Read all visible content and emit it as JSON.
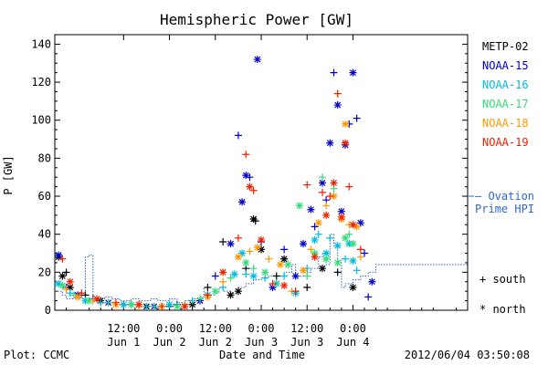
{
  "chart_data": {
    "type": "scatter",
    "title": "Hemispheric Power [GW]",
    "ylabel": "P [GW]",
    "xlabel": "Date and Time",
    "ylim": [
      0,
      145
    ],
    "xlim_hours": [
      -30,
      78
    ],
    "yticks": [
      0,
      20,
      40,
      60,
      80,
      100,
      120,
      140
    ],
    "xticks": [
      {
        "hours": -12,
        "time": "12:00",
        "date": "Jun 1"
      },
      {
        "hours": 0,
        "time": "0:00",
        "date": "Jun 2"
      },
      {
        "hours": 12,
        "time": "12:00",
        "date": "Jun 2"
      },
      {
        "hours": 24,
        "time": "0:00",
        "date": "Jun 3"
      },
      {
        "hours": 36,
        "time": "12:00",
        "date": "Jun 3"
      },
      {
        "hours": 48,
        "time": "0:00",
        "date": "Jun 4"
      }
    ],
    "legend_placement": "right",
    "symbols": {
      "south": "+",
      "north": "*"
    },
    "series": [
      {
        "name": "METP-02",
        "color": "#000000",
        "points": [
          [
            -29,
            28,
            "*"
          ],
          [
            -28,
            18,
            "*"
          ],
          [
            -27,
            20,
            "+"
          ],
          [
            -26,
            12,
            "*"
          ],
          [
            -22,
            8,
            "+"
          ],
          [
            -18,
            5,
            "*"
          ],
          [
            -12,
            3,
            "+"
          ],
          [
            -6,
            2,
            "*"
          ],
          [
            0,
            2,
            "+"
          ],
          [
            6,
            3,
            "*"
          ],
          [
            10,
            12,
            "+"
          ],
          [
            14,
            36,
            "+"
          ],
          [
            16,
            8,
            "*"
          ],
          [
            18,
            10,
            "*"
          ],
          [
            20,
            22,
            "+"
          ],
          [
            22,
            48,
            "*"
          ],
          [
            22.5,
            47,
            "+"
          ],
          [
            24,
            32,
            "*"
          ],
          [
            28,
            18,
            "+"
          ],
          [
            30,
            27,
            "*"
          ],
          [
            36,
            12,
            "+"
          ],
          [
            40,
            22,
            "*"
          ],
          [
            44,
            20,
            "+"
          ],
          [
            48,
            12,
            "*"
          ]
        ]
      },
      {
        "name": "NOAA-15",
        "color": "#0000cc",
        "points": [
          [
            -29,
            29,
            "*"
          ],
          [
            -27,
            12,
            "+"
          ],
          [
            -24,
            8,
            "*"
          ],
          [
            -20,
            6,
            "+"
          ],
          [
            -16,
            4,
            "*"
          ],
          [
            -10,
            3,
            "+"
          ],
          [
            -4,
            2,
            "*"
          ],
          [
            2,
            3,
            "+"
          ],
          [
            8,
            5,
            "*"
          ],
          [
            12,
            18,
            "+"
          ],
          [
            16,
            35,
            "*"
          ],
          [
            18,
            92,
            "+"
          ],
          [
            19,
            57,
            "*"
          ],
          [
            20,
            71,
            "*"
          ],
          [
            21,
            70,
            "+"
          ],
          [
            23,
            132,
            "*"
          ],
          [
            24,
            36,
            "+"
          ],
          [
            27,
            12,
            "*"
          ],
          [
            30,
            32,
            "+"
          ],
          [
            33,
            18,
            "*"
          ],
          [
            35,
            35,
            "*"
          ],
          [
            37,
            53,
            "*"
          ],
          [
            38,
            44,
            "+"
          ],
          [
            40,
            67,
            "*"
          ],
          [
            41,
            58,
            "+"
          ],
          [
            42,
            88,
            "*"
          ],
          [
            43,
            125,
            "+"
          ],
          [
            44,
            108,
            "*"
          ],
          [
            45,
            52,
            "*"
          ],
          [
            46,
            87,
            "*"
          ],
          [
            47,
            98,
            "+"
          ],
          [
            48,
            125,
            "*"
          ],
          [
            49,
            101,
            "+"
          ],
          [
            50,
            46,
            "*"
          ],
          [
            51,
            30,
            "+"
          ],
          [
            52,
            7,
            "+"
          ],
          [
            53,
            15,
            "*"
          ]
        ]
      },
      {
        "name": "NOAA-16",
        "color": "#00bbdd",
        "points": [
          [
            -29,
            14,
            "*"
          ],
          [
            -26,
            9,
            "+"
          ],
          [
            -22,
            5,
            "*"
          ],
          [
            -18,
            4,
            "+"
          ],
          [
            -12,
            3,
            "*"
          ],
          [
            -6,
            2,
            "+"
          ],
          [
            0,
            3,
            "*"
          ],
          [
            6,
            5,
            "+"
          ],
          [
            10,
            8,
            "*"
          ],
          [
            14,
            12,
            "+"
          ],
          [
            17,
            19,
            "*"
          ],
          [
            19,
            30,
            "*"
          ],
          [
            20,
            19,
            "+"
          ],
          [
            22,
            18,
            "*"
          ],
          [
            25,
            17,
            "+"
          ],
          [
            28,
            14,
            "*"
          ],
          [
            30,
            18,
            "+"
          ],
          [
            33,
            9,
            "*"
          ],
          [
            36,
            22,
            "+"
          ],
          [
            38,
            37,
            "*"
          ],
          [
            39,
            40,
            "+"
          ],
          [
            41,
            30,
            "*"
          ],
          [
            42,
            38,
            "+"
          ],
          [
            44,
            34,
            "*"
          ],
          [
            46,
            27,
            "+"
          ],
          [
            47,
            35,
            "*"
          ],
          [
            48,
            26,
            "*"
          ],
          [
            49,
            21,
            "+"
          ]
        ]
      },
      {
        "name": "NOAA-17",
        "color": "#33dd77",
        "points": [
          [
            -28,
            13,
            "*"
          ],
          [
            -25,
            8,
            "+"
          ],
          [
            -21,
            5,
            "*"
          ],
          [
            -16,
            4,
            "+"
          ],
          [
            -10,
            3,
            "*"
          ],
          [
            -4,
            2,
            "+"
          ],
          [
            2,
            2,
            "*"
          ],
          [
            8,
            6,
            "+"
          ],
          [
            12,
            10,
            "*"
          ],
          [
            16,
            17,
            "+"
          ],
          [
            20,
            25,
            "*"
          ],
          [
            22,
            22,
            "+"
          ],
          [
            25,
            20,
            "*"
          ],
          [
            28,
            14,
            "+"
          ],
          [
            31,
            24,
            "*"
          ],
          [
            34,
            55,
            "*"
          ],
          [
            36,
            18,
            "+"
          ],
          [
            38,
            30,
            "*"
          ],
          [
            40,
            70,
            "+"
          ],
          [
            41,
            27,
            "*"
          ],
          [
            43,
            64,
            "+"
          ],
          [
            44,
            25,
            "*"
          ],
          [
            46,
            38,
            "*"
          ],
          [
            47,
            40,
            "+"
          ],
          [
            48,
            35,
            "*"
          ]
        ]
      },
      {
        "name": "NOAA-18",
        "color": "#ff9900",
        "points": [
          [
            -27,
            11,
            "+"
          ],
          [
            -24,
            7,
            "*"
          ],
          [
            -20,
            5,
            "+"
          ],
          [
            -14,
            3,
            "*"
          ],
          [
            -8,
            2,
            "+"
          ],
          [
            -2,
            2,
            "*"
          ],
          [
            4,
            3,
            "+"
          ],
          [
            10,
            7,
            "*"
          ],
          [
            14,
            15,
            "+"
          ],
          [
            18,
            28,
            "*"
          ],
          [
            21,
            31,
            "+"
          ],
          [
            23,
            33,
            "*"
          ],
          [
            26,
            27,
            "+"
          ],
          [
            29,
            24,
            "*"
          ],
          [
            32,
            10,
            "+"
          ],
          [
            35,
            21,
            "*"
          ],
          [
            37,
            32,
            "+"
          ],
          [
            39,
            46,
            "*"
          ],
          [
            41,
            55,
            "+"
          ],
          [
            43,
            60,
            "*"
          ],
          [
            44,
            114,
            "+"
          ],
          [
            45,
            48,
            "*"
          ],
          [
            46,
            98,
            "*"
          ],
          [
            47,
            45,
            "+"
          ],
          [
            49,
            44,
            "*"
          ],
          [
            50,
            28,
            "+"
          ]
        ]
      },
      {
        "name": "NOAA-19",
        "color": "#ee2200",
        "points": [
          [
            -28,
            27,
            "+"
          ],
          [
            -26,
            15,
            "*"
          ],
          [
            -23,
            9,
            "+"
          ],
          [
            -19,
            6,
            "*"
          ],
          [
            -14,
            4,
            "+"
          ],
          [
            -8,
            3,
            "*"
          ],
          [
            -2,
            2,
            "+"
          ],
          [
            4,
            2,
            "*"
          ],
          [
            10,
            8,
            "+"
          ],
          [
            14,
            20,
            "*"
          ],
          [
            18,
            38,
            "+"
          ],
          [
            20,
            82,
            "+"
          ],
          [
            21,
            65,
            "*"
          ],
          [
            22,
            63,
            "+"
          ],
          [
            24,
            37,
            "*"
          ],
          [
            27,
            14,
            "+"
          ],
          [
            30,
            13,
            "*"
          ],
          [
            33,
            10,
            "+"
          ],
          [
            36,
            66,
            "+"
          ],
          [
            38,
            28,
            "*"
          ],
          [
            40,
            62,
            "+"
          ],
          [
            41,
            50,
            "*"
          ],
          [
            42,
            60,
            "+"
          ],
          [
            43,
            67,
            "*"
          ],
          [
            44,
            114,
            "+"
          ],
          [
            45,
            49,
            "*"
          ],
          [
            46,
            88,
            "*"
          ],
          [
            47,
            65,
            "+"
          ],
          [
            48,
            45,
            "*"
          ],
          [
            50,
            32,
            "+"
          ]
        ]
      }
    ],
    "ovation": {
      "name": "Ovation Prime HPI",
      "color": "#3366cc",
      "steps": [
        [
          -30,
          10
        ],
        [
          -28,
          8
        ],
        [
          -27,
          6
        ],
        [
          -25,
          9
        ],
        [
          -23,
          6
        ],
        [
          -22,
          28
        ],
        [
          -21,
          29
        ],
        [
          -20,
          6
        ],
        [
          -17,
          7
        ],
        [
          -15,
          6
        ],
        [
          -13,
          5
        ],
        [
          -10,
          6
        ],
        [
          -8,
          5
        ],
        [
          -5,
          6
        ],
        [
          -3,
          5
        ],
        [
          0,
          6
        ],
        [
          2,
          4
        ],
        [
          4,
          5
        ],
        [
          6,
          6
        ],
        [
          8,
          7
        ],
        [
          9,
          12
        ],
        [
          10,
          8
        ],
        [
          12,
          9
        ],
        [
          13,
          12
        ],
        [
          14,
          10
        ],
        [
          16,
          9
        ],
        [
          18,
          12
        ],
        [
          20,
          14
        ],
        [
          22,
          16
        ],
        [
          24,
          17
        ],
        [
          26,
          18
        ],
        [
          28,
          18
        ],
        [
          30,
          20
        ],
        [
          32,
          24
        ],
        [
          33,
          18
        ],
        [
          35,
          20
        ],
        [
          37,
          22
        ],
        [
          39,
          28
        ],
        [
          40,
          30
        ],
        [
          41,
          24
        ],
        [
          42,
          40
        ],
        [
          43,
          34
        ],
        [
          44,
          26
        ],
        [
          45,
          12
        ],
        [
          46,
          14
        ],
        [
          48,
          16
        ],
        [
          50,
          18
        ],
        [
          52,
          20
        ],
        [
          54,
          24
        ]
      ]
    },
    "ovation_label_lines": [
      "— Ovation",
      "Prime HPI"
    ]
  },
  "legend_south": "+ south",
  "legend_north": "* north",
  "footer": {
    "left": "Plot: CCMC",
    "right": "2012/06/04 03:50:08"
  }
}
